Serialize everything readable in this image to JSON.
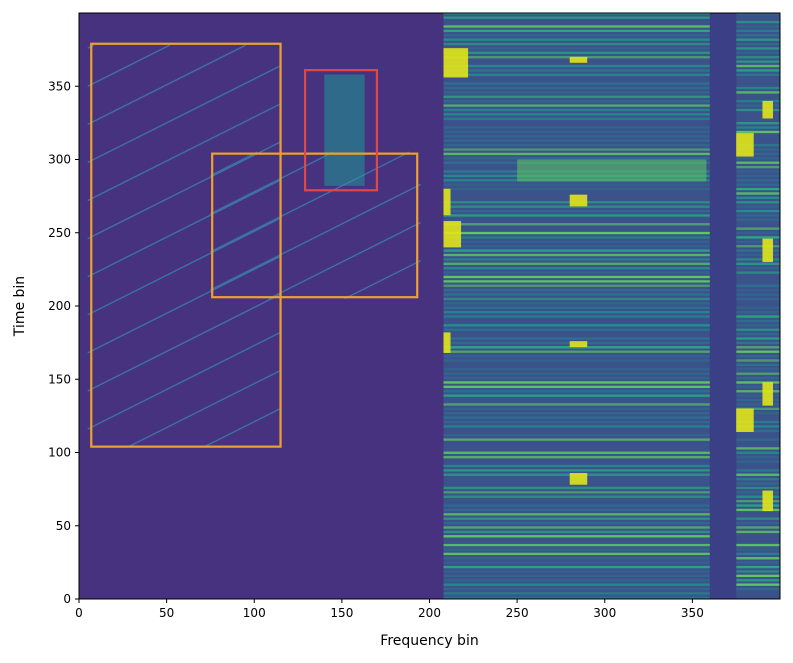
{
  "chart_data": {
    "type": "heatmap",
    "title": "",
    "xlabel": "Frequency bin",
    "ylabel": "Time bin",
    "xlim": [
      0,
      400
    ],
    "ylim": [
      0,
      400
    ],
    "xticks": [
      0,
      50,
      100,
      150,
      200,
      250,
      300,
      350
    ],
    "yticks": [
      0,
      50,
      100,
      150,
      200,
      250,
      300,
      350
    ],
    "colormap": "viridis",
    "background_color": "#46327e",
    "regions": [
      {
        "kind": "diagonal-chirps",
        "x0": 5,
        "x1": 115,
        "y0": 104,
        "y1": 378
      },
      {
        "kind": "diagonal-chirps",
        "x0": 75,
        "x1": 195,
        "y0": 205,
        "y1": 305
      },
      {
        "kind": "narrowband-burst",
        "x0": 140,
        "x1": 163,
        "y0": 282,
        "y1": 358
      },
      {
        "kind": "wideband-comb",
        "x0": 208,
        "x1": 360,
        "y0": 0,
        "y1": 400
      },
      {
        "kind": "wideband-comb",
        "x0": 375,
        "x1": 400,
        "y0": 0,
        "y1": 400
      }
    ],
    "bounding_boxes": [
      {
        "x0": 7,
        "x1": 115,
        "y0": 104,
        "y1": 379,
        "color": "#f0a030"
      },
      {
        "x0": 76,
        "x1": 193,
        "y0": 206,
        "y1": 304,
        "color": "#f0a030"
      },
      {
        "x0": 129,
        "x1": 170,
        "y0": 279,
        "y1": 361,
        "color": "#e04848"
      }
    ]
  }
}
